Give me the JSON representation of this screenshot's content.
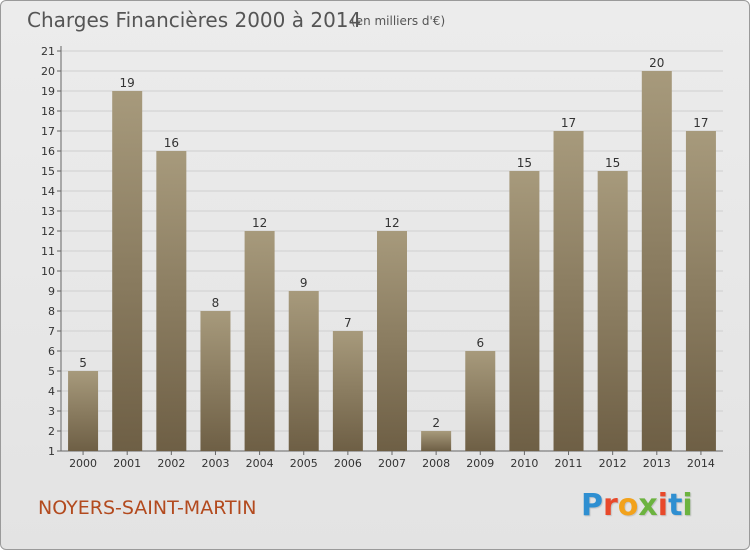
{
  "header": {
    "title": "Charges Financières 2000 à 2014",
    "unit": "(en milliers d'€)"
  },
  "footer": {
    "commune": "NOYERS-SAINT-MARTIN",
    "logo": "Proxiti",
    "logo_colors": [
      "#2f8fd1",
      "#e8492b",
      "#f2a21c",
      "#6cb33f",
      "#e8492b",
      "#2f8fd1",
      "#6cb33f"
    ]
  },
  "colors": {
    "bar_top": "#a79a7c",
    "bar_bottom": "#6e5f45",
    "grid": "#cfcfcf",
    "axis": "#666666",
    "commune": "#b34a1e"
  },
  "chart_data": {
    "type": "bar",
    "title": "Charges Financières 2000 à 2014",
    "subtitle": "(en milliers d'€)",
    "categories": [
      "2000",
      "2001",
      "2002",
      "2003",
      "2004",
      "2005",
      "2006",
      "2007",
      "2008",
      "2009",
      "2010",
      "2011",
      "2012",
      "2013",
      "2014"
    ],
    "values": [
      5,
      19,
      16,
      8,
      12,
      9,
      7,
      12,
      2,
      6,
      15,
      17,
      15,
      20,
      17
    ],
    "ylim": [
      1,
      21
    ],
    "yticks": [
      1,
      2,
      3,
      4,
      5,
      6,
      7,
      8,
      9,
      10,
      11,
      12,
      13,
      14,
      15,
      16,
      17,
      18,
      19,
      20,
      21
    ],
    "grid": true,
    "legend": "none"
  }
}
